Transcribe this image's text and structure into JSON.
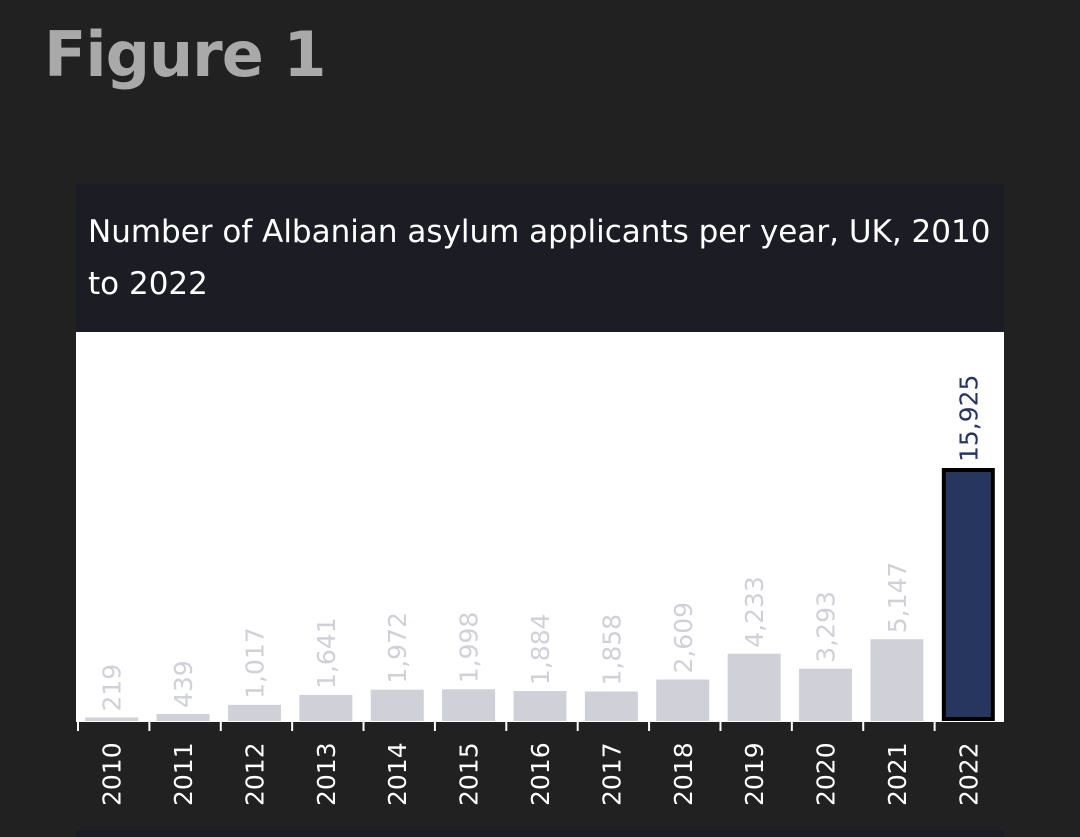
{
  "figure_label": "Figure 1",
  "chart_data": {
    "type": "bar",
    "title": "Number of Albanian asylum applicants per year, UK, 2010 to 2022",
    "categories": [
      "2010",
      "2011",
      "2012",
      "2013",
      "2014",
      "2015",
      "2016",
      "2017",
      "2018",
      "2019",
      "2020",
      "2021",
      "2022"
    ],
    "values": [
      219,
      439,
      1017,
      1641,
      1972,
      1998,
      1884,
      1858,
      2609,
      4233,
      3293,
      5147,
      15925
    ],
    "value_labels": [
      "219",
      "439",
      "1,017",
      "1,641",
      "1,972",
      "1,998",
      "1,884",
      "1,858",
      "2,609",
      "4,233",
      "3,293",
      "5,147",
      "15,925"
    ],
    "highlight_category": "2022",
    "colors": {
      "bar": "#cfd0d8",
      "highlight_bar": "#27365f",
      "highlight_outline": "#000000",
      "label": "#cfd0d8",
      "highlight_label": "#27365f",
      "tick_label": "#ffffff"
    },
    "xlabel": "",
    "ylabel": "",
    "grid": false,
    "legend": "none"
  }
}
